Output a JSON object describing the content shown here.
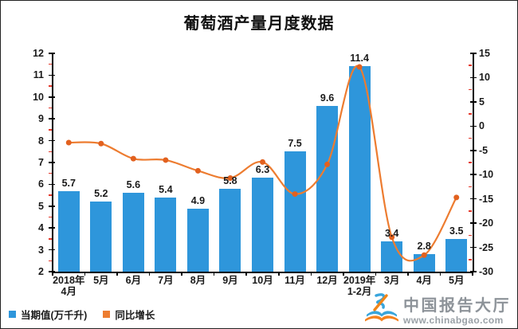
{
  "title": "葡萄酒产量月度数据",
  "chart_data": {
    "type": "combo-bar-line",
    "categories": [
      [
        "2018年",
        "4月"
      ],
      [
        "5月"
      ],
      [
        "6月"
      ],
      [
        "7月"
      ],
      [
        "8月"
      ],
      [
        "9月"
      ],
      [
        "10月"
      ],
      [
        "11月"
      ],
      [
        "12月"
      ],
      [
        "2019年",
        "1-2月"
      ],
      [
        "3月"
      ],
      [
        "4月"
      ],
      [
        "5月"
      ]
    ],
    "series": [
      {
        "name": "当期值(万千升)",
        "type": "bar",
        "axis": "left",
        "color": "#2E96DB",
        "values": [
          5.7,
          5.2,
          5.6,
          5.4,
          4.9,
          5.8,
          6.3,
          7.5,
          9.6,
          11.4,
          3.4,
          2.8,
          3.5
        ],
        "data_labels": true
      },
      {
        "name": "同比增长",
        "type": "line",
        "axis": "right",
        "color": "#ED7C30",
        "marker_color": "#E2611F",
        "values": [
          -3.4,
          -3.6,
          -6.7,
          -7.0,
          -9.2,
          -10.7,
          -7.4,
          -14.0,
          -7.9,
          12.2,
          -22.9,
          -26.6,
          -14.7
        ],
        "data_labels": false
      }
    ],
    "left_axis": {
      "min": 2,
      "max": 12,
      "major_step": 1,
      "minor_step": 0.5,
      "tick_labels": [
        "12",
        "11",
        "10",
        "9",
        "8",
        "7",
        "6",
        "5",
        "4",
        "3",
        "2"
      ]
    },
    "right_axis": {
      "min": -30,
      "max": 15,
      "major_step": 5,
      "minor_step": 2.5,
      "tick_labels": [
        "15",
        "10",
        "5",
        "0",
        "-5",
        "-10",
        "-15",
        "-20",
        "-25",
        "-30"
      ]
    },
    "grid": false,
    "legend_position": "bottom-left"
  },
  "legend": {
    "items": [
      {
        "label": "当期值(万千升)",
        "color": "#2E96DB"
      },
      {
        "label": "同比增长",
        "color": "#ED7D31"
      }
    ]
  },
  "watermark": {
    "brand": "中国报告大厅",
    "url": "www.chinabgao.com"
  },
  "colors": {
    "bar": "#2E96DB",
    "line": "#ED7C30",
    "marker": "#E2611F",
    "minor_tick": "#E4392B",
    "axis": "#000000"
  }
}
